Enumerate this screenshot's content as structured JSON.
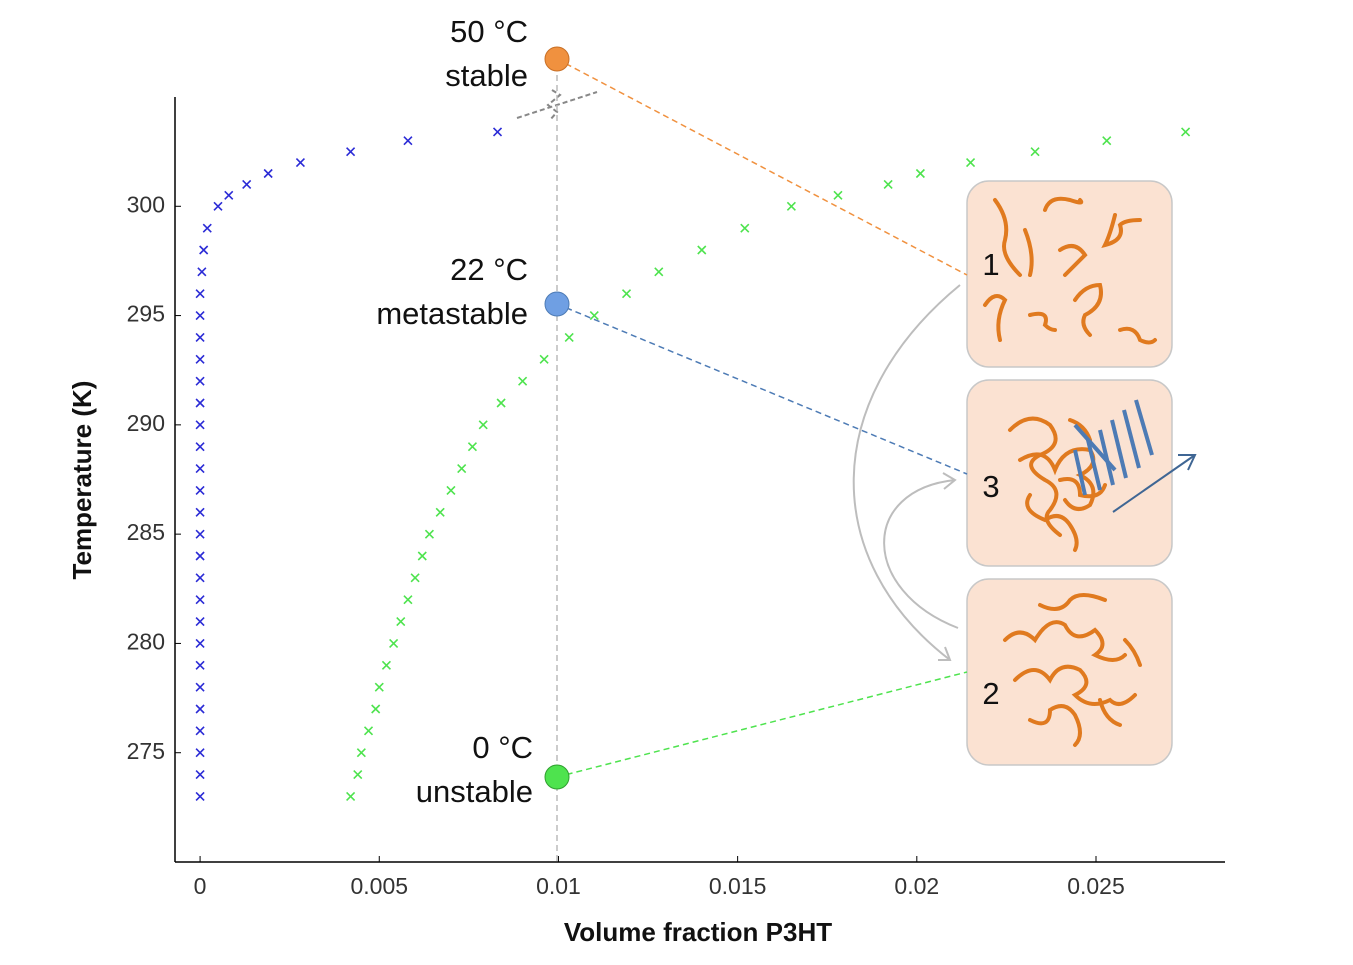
{
  "chart_data": {
    "type": "scatter",
    "x_label": "Volume fraction P3HT",
    "y_label": "Temperature (K)",
    "xlim": [
      -0.0007,
      0.0286
    ],
    "ylim": [
      270,
      305
    ],
    "xticks": [
      0,
      0.005,
      0.01,
      0.015,
      0.02,
      0.025
    ],
    "yticks": [
      275,
      280,
      285,
      290,
      295,
      300
    ],
    "series": [
      {
        "color": "#2b2bd6",
        "x": [
          0,
          0,
          0,
          0,
          0,
          0,
          0,
          0,
          0,
          0,
          0,
          0,
          0,
          0,
          0,
          0,
          0,
          0,
          0,
          0,
          0,
          0,
          0,
          0,
          5e-05,
          0.0001,
          0.0002,
          0.0005,
          0.0008,
          0.0013,
          0.0019,
          0.0028,
          0.0042,
          0.0058,
          0.0083
        ],
        "y": [
          273,
          274,
          275,
          276,
          277,
          278,
          279,
          280,
          281,
          282,
          283,
          284,
          285,
          286,
          287,
          288,
          289,
          290,
          291,
          292,
          293,
          294,
          295,
          296,
          297,
          298,
          299,
          300,
          300.5,
          301,
          301.5,
          302,
          302.5,
          303,
          303.4
        ]
      },
      {
        "color": "#4ee34e",
        "x": [
          0.0042,
          0.0044,
          0.0045,
          0.0047,
          0.0049,
          0.005,
          0.0052,
          0.0054,
          0.0056,
          0.0058,
          0.006,
          0.0062,
          0.0064,
          0.0067,
          0.007,
          0.0073,
          0.0076,
          0.0079,
          0.0084,
          0.009,
          0.0096,
          0.0103,
          0.011,
          0.0119,
          0.0128,
          0.014,
          0.0152,
          0.0165,
          0.0178,
          0.0192,
          0.0201,
          0.0215,
          0.0233,
          0.0253,
          0.0275
        ],
        "y": [
          273,
          274,
          275,
          276,
          277,
          278,
          279,
          280,
          281,
          282,
          283,
          284,
          285,
          286,
          287,
          288,
          289,
          290,
          291,
          292,
          293,
          294,
          295,
          296,
          297,
          298,
          299,
          300,
          300.5,
          301,
          301.5,
          302,
          302.5,
          303,
          303.4
        ]
      }
    ],
    "annotations": [
      {
        "label": "50 °C",
        "sublabel": "stable"
      },
      {
        "label": "22 °C",
        "sublabel": "metastable"
      },
      {
        "label": "0 °C",
        "sublabel": "unstable"
      }
    ],
    "panels": [
      "1",
      "3",
      "2"
    ]
  }
}
